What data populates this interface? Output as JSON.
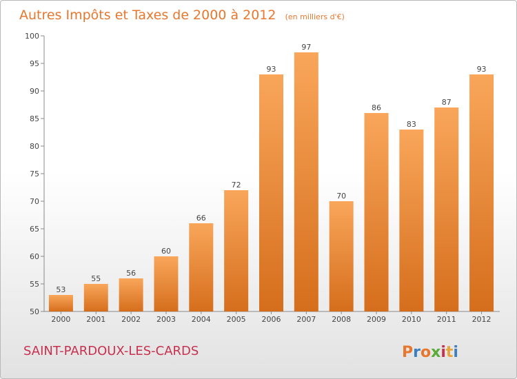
{
  "colors": {
    "bar_light": "#f9a65a",
    "bar_dark": "#d56e1c",
    "axis": "#888888",
    "grid": "#d8d8d8",
    "title": "#e8772e",
    "commune": "#c8304f",
    "logo_letters": [
      "#e8772e",
      "#3a7fc1",
      "#e8772e",
      "#5aaa3a",
      "#c8304f",
      "#e8a33a",
      "#3a7fc1"
    ]
  },
  "chart_data": {
    "type": "bar",
    "title": "Autres Impôts et Taxes de 2000 à 2012",
    "subtitle": "(en milliers d'€)",
    "categories": [
      "2000",
      "2001",
      "2002",
      "2003",
      "2004",
      "2005",
      "2006",
      "2007",
      "2008",
      "2009",
      "2010",
      "2011",
      "2012"
    ],
    "values": [
      53,
      55,
      56,
      60,
      66,
      72,
      93,
      97,
      70,
      86,
      83,
      87,
      93
    ],
    "value_labels": [
      "53",
      "55",
      "56",
      "60",
      "66",
      "72",
      "93",
      "97",
      "70",
      "86",
      "83",
      "87",
      "93"
    ],
    "ylim": [
      50,
      100
    ],
    "yticks": [
      50,
      55,
      60,
      65,
      70,
      75,
      80,
      85,
      90,
      95,
      100
    ],
    "ytick_labels": [
      "50",
      "55",
      "60",
      "65",
      "70",
      "75",
      "80",
      "85",
      "90",
      "95",
      "100"
    ],
    "grid": false,
    "legend": "none"
  },
  "footer": {
    "commune": "SAINT-PARDOUX-LES-CARDS",
    "logo": "Proxiti",
    "logo_letters": [
      "P",
      "r",
      "o",
      "x",
      "i",
      "t",
      "i"
    ]
  }
}
